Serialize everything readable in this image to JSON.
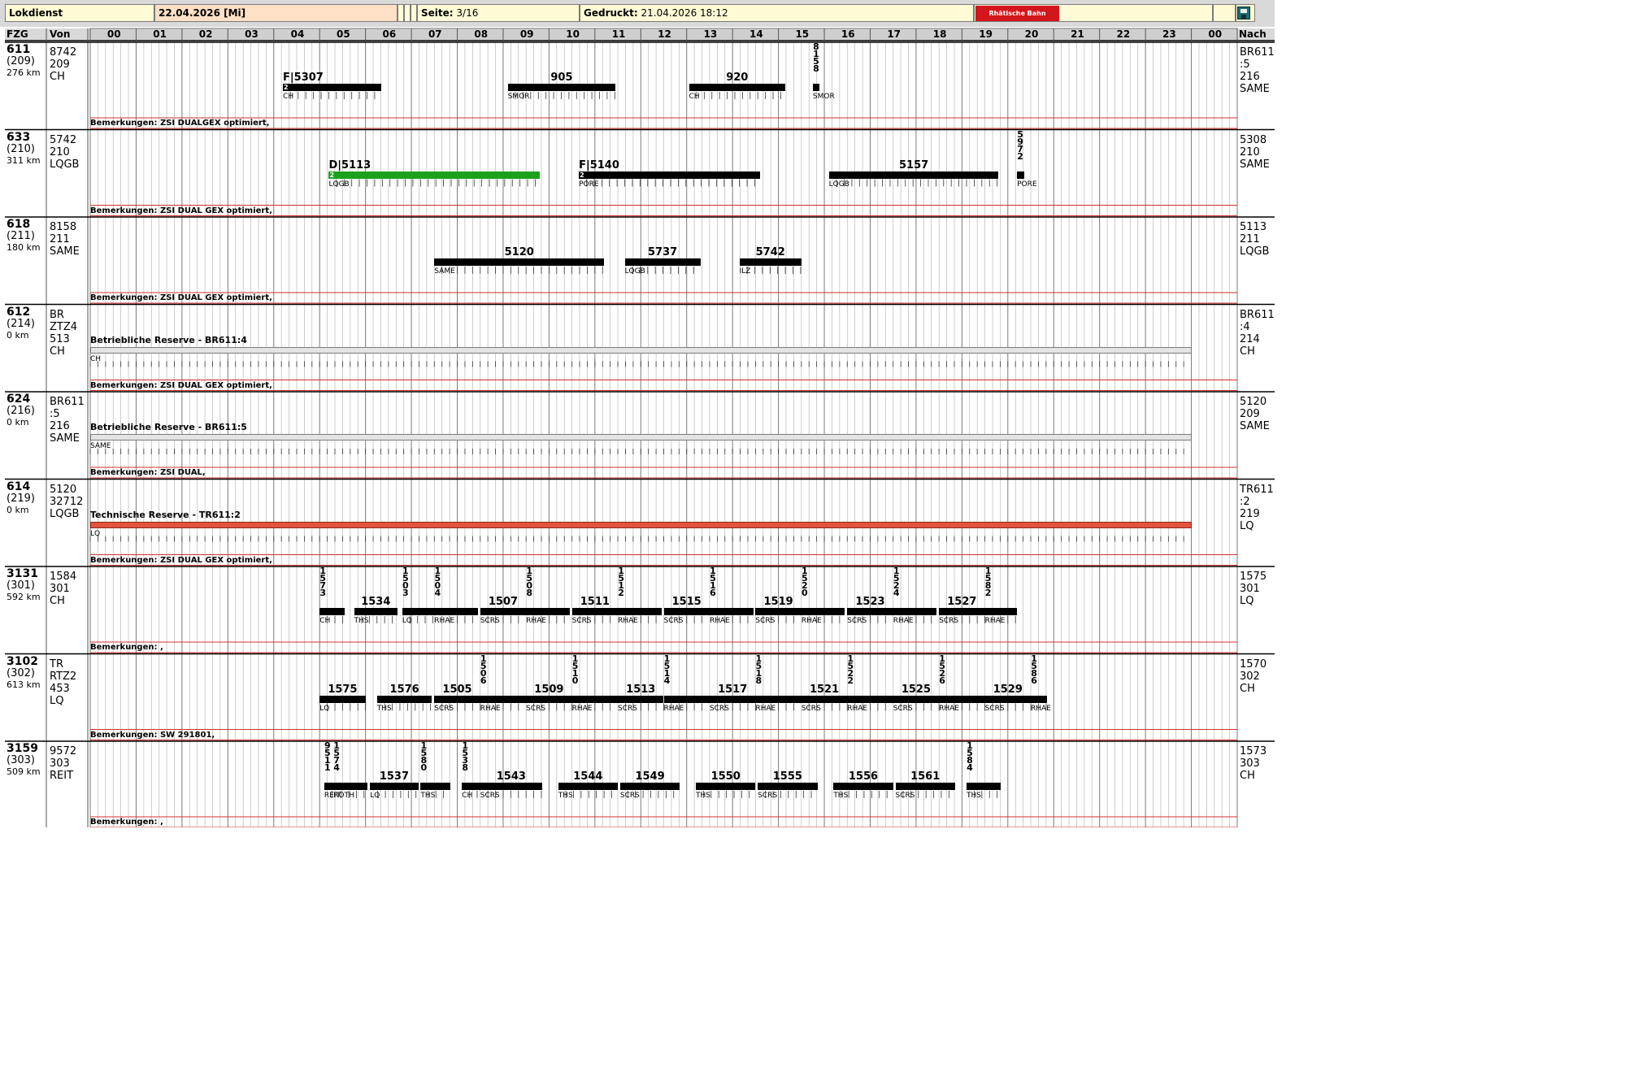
{
  "header": {
    "title": "Lokdienst",
    "date": "22.04.2026 [Mi]",
    "page_label": "Seite:",
    "page_value": "3/16",
    "printed_label": "Gedruckt:",
    "printed_value": "21.04.2026 18:12",
    "logo_text": "Rhätische Bahn",
    "save_icon": "save-icon"
  },
  "columns": {
    "fzg": "FZG",
    "von": "Von",
    "nach": "Nach"
  },
  "hours": [
    "00",
    "01",
    "02",
    "03",
    "04",
    "05",
    "06",
    "07",
    "08",
    "09",
    "10",
    "11",
    "12",
    "13",
    "14",
    "15",
    "16",
    "17",
    "18",
    "19",
    "20",
    "21",
    "22",
    "23",
    "00"
  ],
  "colors": {
    "accent_red": "#d03030",
    "green_bar": "#1ba11b",
    "reserve_red": "#e5533e",
    "logo_red": "#d3161b",
    "header_bg": "#fffbd6",
    "date_bg": "#fde0c6"
  },
  "rows": [
    {
      "veh": "611",
      "num": "(209)",
      "km": "276 km",
      "von": [
        "8742",
        "209",
        "CH"
      ],
      "nach": [
        "BR611",
        ":5",
        "216",
        "SAME"
      ],
      "remark": "Bemerkungen: ZSI DUALGEX optimiert,",
      "trains": [
        {
          "label": "F|5307",
          "start": 4.2,
          "end": 6.35,
          "station": "CH",
          "badge": "2"
        },
        {
          "label": "905",
          "start": 9.1,
          "end": 11.45,
          "station": "SMOR"
        },
        {
          "label": "920",
          "start": 13.05,
          "end": 15.15,
          "station": "CH"
        },
        {
          "label": "8158",
          "vertical": true,
          "start": 15.75,
          "end": 15.9,
          "station": "SMOR"
        }
      ]
    },
    {
      "veh": "633",
      "num": "(210)",
      "km": "311 km",
      "von": [
        "5742",
        "210",
        "LQGB"
      ],
      "nach": [
        "5308",
        "210",
        "SAME"
      ],
      "remark": "Bemerkungen: ZSI DUAL GEX optimiert,",
      "trains": [
        {
          "label": "D|5113",
          "start": 5.2,
          "end": 9.8,
          "station": "LQGB",
          "badge": "2",
          "color": "green"
        },
        {
          "label": "F|5140",
          "start": 10.65,
          "end": 14.6,
          "station": "PORE",
          "badge": "2"
        },
        {
          "label": "5157",
          "start": 16.1,
          "end": 19.8,
          "station": "LQGB"
        },
        {
          "label": "5972",
          "vertical": true,
          "start": 20.2,
          "end": 20.35,
          "station": "PORE"
        }
      ]
    },
    {
      "veh": "618",
      "num": "(211)",
      "km": "180 km",
      "von": [
        "8158",
        "211",
        "SAME"
      ],
      "nach": [
        "5113",
        "211",
        "LQGB"
      ],
      "remark": "Bemerkungen: ZSI DUAL GEX optimiert,",
      "trains": [
        {
          "label": "5120",
          "start": 7.5,
          "end": 11.2,
          "station": "SAME"
        },
        {
          "label": "5737",
          "start": 11.65,
          "end": 13.3,
          "station": "LQGB"
        },
        {
          "label": "5742",
          "start": 14.15,
          "end": 15.5,
          "station": "ILZ"
        }
      ]
    },
    {
      "veh": "612",
      "num": "(214)",
      "km": "0 km",
      "von": [
        "BR",
        "ZTZ4",
        "513",
        "CH"
      ],
      "nach": [
        "BR611",
        ":4",
        "214",
        "CH"
      ],
      "remark": "Bemerkungen: ZSI DUAL GEX optimiert,",
      "reserve": {
        "label": "Betriebliche Reserve - BR611:4",
        "station": "CH",
        "type": "gray"
      }
    },
    {
      "veh": "624",
      "num": "(216)",
      "km": "0 km",
      "von": [
        "BR611",
        ":5",
        "216",
        "SAME"
      ],
      "nach": [
        "5120",
        "209",
        "SAME"
      ],
      "remark": "Bemerkungen: ZSI DUAL,",
      "reserve": {
        "label": "Betriebliche Reserve - BR611:5",
        "station": "SAME",
        "type": "gray"
      }
    },
    {
      "veh": "614",
      "num": "(219)",
      "km": "0 km",
      "von": [
        "5120",
        "32712",
        "LQGB"
      ],
      "nach": [
        "TR611",
        ":2",
        "219",
        "LQ"
      ],
      "remark": "Bemerkungen: ZSI DUAL GEX optimiert,",
      "reserve": {
        "label": "Technische Reserve - TR611:2",
        "station": "LQ",
        "type": "red"
      }
    },
    {
      "veh": "3131",
      "num": "(301)",
      "km": "592 km",
      "von": [
        "1584",
        "301",
        "CH"
      ],
      "nach": [
        "1575",
        "301",
        "LQ"
      ],
      "remark": "Bemerkungen: ,",
      "trains": [
        {
          "label": "1573",
          "vertical": true,
          "start": 5.0,
          "end": 5.55,
          "station": "CH"
        },
        {
          "label": "1534",
          "start": 5.75,
          "end": 6.7,
          "station": "THS"
        },
        {
          "label": "1503",
          "vertical": true,
          "start": 6.8,
          "end": 7.5,
          "station": "LQ"
        },
        {
          "label": "1504",
          "vertical": true,
          "start": 7.5,
          "end": 8.45,
          "station": "RHAE"
        },
        {
          "label": "1507",
          "start": 8.5,
          "end": 9.5,
          "station": "SCRS"
        },
        {
          "label": "1508",
          "vertical": true,
          "start": 9.5,
          "end": 10.45,
          "station": "RHAE"
        },
        {
          "label": "1511",
          "start": 10.5,
          "end": 11.5,
          "station": "SCRS"
        },
        {
          "label": "1512",
          "vertical": true,
          "start": 11.5,
          "end": 12.45,
          "station": "RHAE"
        },
        {
          "label": "1515",
          "start": 12.5,
          "end": 13.5,
          "station": "SCRS"
        },
        {
          "label": "1516",
          "vertical": true,
          "start": 13.5,
          "end": 14.45,
          "station": "RHAE"
        },
        {
          "label": "1519",
          "start": 14.5,
          "end": 15.5,
          "station": "SCRS"
        },
        {
          "label": "1520",
          "vertical": true,
          "start": 15.5,
          "end": 16.45,
          "station": "RHAE"
        },
        {
          "label": "1523",
          "start": 16.5,
          "end": 17.5,
          "station": "SCRS"
        },
        {
          "label": "1524",
          "vertical": true,
          "start": 17.5,
          "end": 18.45,
          "station": "RHAE"
        },
        {
          "label": "1527",
          "start": 18.5,
          "end": 19.5,
          "station": "SCRS"
        },
        {
          "label": "1582",
          "vertical": true,
          "start": 19.5,
          "end": 20.2,
          "station": "RHAE"
        }
      ]
    },
    {
      "veh": "3102",
      "num": "(302)",
      "km": "613 km",
      "von": [
        "TR",
        "RTZ2",
        "453",
        "LQ"
      ],
      "nach": [
        "1570",
        "302",
        "CH"
      ],
      "remark": "Bemerkungen: SW 291801,",
      "trains": [
        {
          "label": "1575",
          "start": 5.0,
          "end": 6.0,
          "station": "LQ"
        },
        {
          "label": "1576",
          "start": 6.25,
          "end": 7.45,
          "station": "THS"
        },
        {
          "label": "1505",
          "start": 7.5,
          "end": 8.5,
          "station": "SCRS"
        },
        {
          "label": "1506",
          "vertical": true,
          "start": 8.5,
          "end": 9.5,
          "station": "RHAE"
        },
        {
          "label": "1509",
          "start": 9.5,
          "end": 10.5,
          "station": "SCRS"
        },
        {
          "label": "1510",
          "vertical": true,
          "start": 10.5,
          "end": 11.5,
          "station": "RHAE"
        },
        {
          "label": "1513",
          "start": 11.5,
          "end": 12.5,
          "station": "SCRS"
        },
        {
          "label": "1514",
          "vertical": true,
          "start": 12.5,
          "end": 13.5,
          "station": "RHAE"
        },
        {
          "label": "1517",
          "start": 13.5,
          "end": 14.5,
          "station": "SCRS"
        },
        {
          "label": "1518",
          "vertical": true,
          "start": 14.5,
          "end": 15.5,
          "station": "RHAE"
        },
        {
          "label": "1521",
          "start": 15.5,
          "end": 16.5,
          "station": "SCRS"
        },
        {
          "label": "1522",
          "vertical": true,
          "start": 16.5,
          "end": 17.5,
          "station": "RHAE"
        },
        {
          "label": "1525",
          "start": 17.5,
          "end": 18.5,
          "station": "SCRS"
        },
        {
          "label": "1526",
          "vertical": true,
          "start": 18.5,
          "end": 19.5,
          "station": "RHAE"
        },
        {
          "label": "1529",
          "start": 19.5,
          "end": 20.5,
          "station": "SCRS"
        },
        {
          "label": "1586",
          "vertical": true,
          "start": 20.5,
          "end": 20.85,
          "station": "RHAE"
        }
      ]
    },
    {
      "veh": "3159",
      "num": "(303)",
      "km": "509 km",
      "von": [
        "9572",
        "303",
        "REIT"
      ],
      "nach": [
        "1573",
        "303",
        "CH"
      ],
      "remark": "Bemerkungen: ,",
      "trains": [
        {
          "label": "9511",
          "vertical": true,
          "start": 5.1,
          "end": 5.3,
          "station": "REIT"
        },
        {
          "label": "1574",
          "vertical": true,
          "start": 5.3,
          "end": 6.05,
          "station": "ROTH"
        },
        {
          "label": "1537",
          "start": 6.1,
          "end": 7.15,
          "station": "LQ"
        },
        {
          "label": "1580",
          "vertical": true,
          "start": 7.2,
          "end": 7.85,
          "station": "THS"
        },
        {
          "label": "1538",
          "vertical": true,
          "start": 8.1,
          "end": 8.5,
          "station": "CH"
        },
        {
          "label": "1543",
          "start": 8.5,
          "end": 9.85,
          "station": "SCRS"
        },
        {
          "label": "1544",
          "start": 10.2,
          "end": 11.5,
          "station": "THS"
        },
        {
          "label": "1549",
          "start": 11.55,
          "end": 12.85,
          "station": "SCRS"
        },
        {
          "label": "1550",
          "start": 13.2,
          "end": 14.5,
          "station": "THS"
        },
        {
          "label": "1555",
          "start": 14.55,
          "end": 15.85,
          "station": "SCRS"
        },
        {
          "label": "1556",
          "start": 16.2,
          "end": 17.5,
          "station": "THS"
        },
        {
          "label": "1561",
          "start": 17.55,
          "end": 18.85,
          "station": "SCRS"
        },
        {
          "label": "1584",
          "vertical": true,
          "start": 19.1,
          "end": 19.85,
          "station": "THS"
        }
      ]
    }
  ]
}
